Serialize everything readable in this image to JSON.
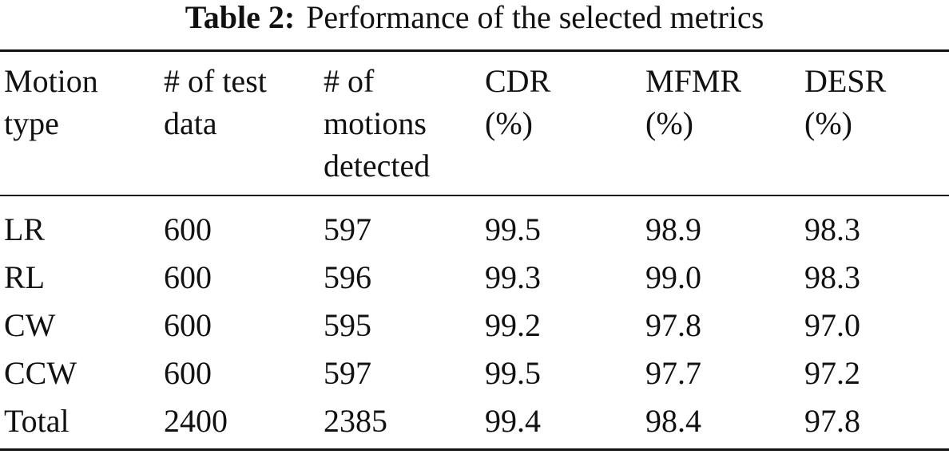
{
  "caption": {
    "label": "Table 2:",
    "text": "Performance of the selected metrics"
  },
  "table": {
    "header": [
      [
        "Motion",
        "type"
      ],
      [
        "# of test",
        "data"
      ],
      [
        "# of",
        "motions",
        "detected"
      ],
      [
        "CDR",
        "(%)"
      ],
      [
        "MFMR",
        "(%)"
      ],
      [
        "DESR",
        "(%)"
      ]
    ],
    "rows": [
      [
        "LR",
        "600",
        "597",
        "99.5",
        "98.9",
        "98.3"
      ],
      [
        "RL",
        "600",
        "596",
        "99.3",
        "99.0",
        "98.3"
      ],
      [
        "CW",
        "600",
        "595",
        "99.2",
        "97.8",
        "97.0"
      ],
      [
        "CCW",
        "600",
        "597",
        "99.5",
        "97.7",
        "97.2"
      ],
      [
        "Total",
        "2400",
        "2385",
        "99.4",
        "98.4",
        "97.8"
      ]
    ]
  }
}
